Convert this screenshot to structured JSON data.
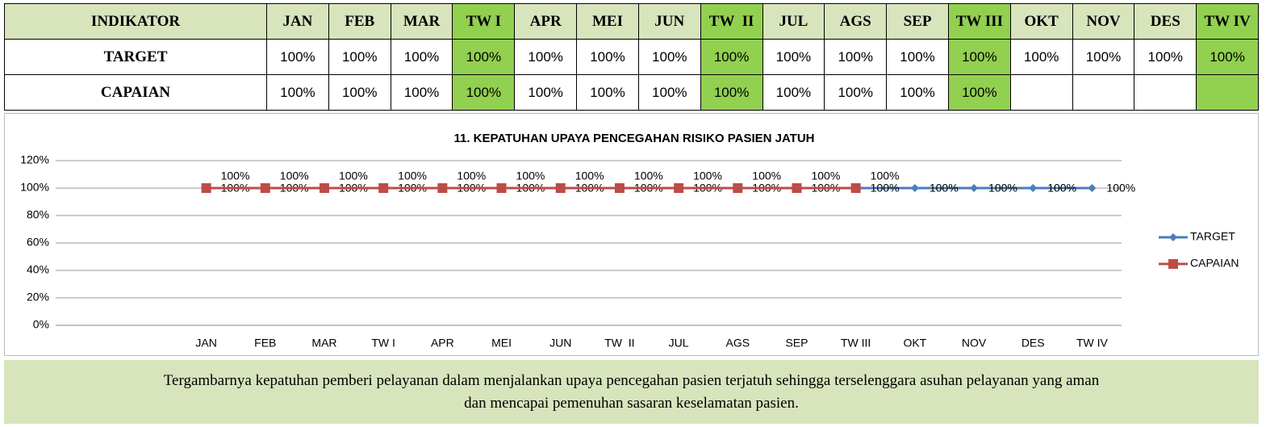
{
  "table": {
    "header": "INDIKATOR",
    "columns": [
      "JAN",
      "FEB",
      "MAR",
      "TW I",
      "APR",
      "MEI",
      "JUN",
      "TW  II",
      "JUL",
      "AGS",
      "SEP",
      "TW III",
      "OKT",
      "NOV",
      "DES",
      "TW IV"
    ],
    "highlight_color": "#92d050",
    "rows": [
      {
        "label": "TARGET",
        "cells": [
          "100%",
          "100%",
          "100%",
          "100%",
          "100%",
          "100%",
          "100%",
          "100%",
          "100%",
          "100%",
          "100%",
          "100%",
          "100%",
          "100%",
          "100%",
          "100%"
        ]
      },
      {
        "label": "CAPAIAN",
        "cells": [
          "100%",
          "100%",
          "100%",
          "100%",
          "100%",
          "100%",
          "100%",
          "100%",
          "100%",
          "100%",
          "100%",
          "100%",
          null,
          null,
          null,
          null
        ]
      }
    ]
  },
  "chart_data": {
    "type": "line",
    "title": "11. KEPATUHAN UPAYA PENCEGAHAN RISIKO PASIEN JATUH",
    "categories": [
      "JAN",
      "FEB",
      "MAR",
      "TW I",
      "APR",
      "MEI",
      "JUN",
      "TW  II",
      "JUL",
      "AGS",
      "SEP",
      "TW III",
      "OKT",
      "NOV",
      "DES",
      "TW IV"
    ],
    "series": [
      {
        "name": "TARGET",
        "color": "#4a7ebb",
        "values": [
          100,
          100,
          100,
          100,
          100,
          100,
          100,
          100,
          100,
          100,
          100,
          100,
          100,
          100,
          100,
          100
        ],
        "value_labels": [
          "100%",
          "100%",
          "100%",
          "100%",
          "100%",
          "100%",
          "100%",
          "100%",
          "100%",
          "100%",
          "100%",
          "100%",
          "100%",
          "100%",
          "100%",
          "100%"
        ]
      },
      {
        "name": "CAPAIAN",
        "color": "#be4b48",
        "values": [
          100,
          100,
          100,
          100,
          100,
          100,
          100,
          100,
          100,
          100,
          100,
          100,
          null,
          null,
          null,
          null
        ],
        "value_labels": [
          "100%",
          "100%",
          "100%",
          "100%",
          "100%",
          "100%",
          "100%",
          "100%",
          "100%",
          "100%",
          "100%",
          "100%",
          null,
          null,
          null,
          null
        ]
      }
    ],
    "ylim": [
      0,
      120
    ],
    "yticks": [
      {
        "value": 0,
        "label": "0%"
      },
      {
        "value": 20,
        "label": "20%"
      },
      {
        "value": 40,
        "label": "40%"
      },
      {
        "value": 60,
        "label": "60%"
      },
      {
        "value": 80,
        "label": "80%"
      },
      {
        "value": 100,
        "label": "100%"
      },
      {
        "value": 120,
        "label": "120%"
      }
    ],
    "grid": true,
    "legend": "right"
  },
  "footer": {
    "lines": [
      "Tergambarnya kepatuhan pemberi pelayanan dalam menjalankan upaya pencegahan pasien terjatuh sehingga terselenggara asuhan pelayanan yang aman",
      "dan mencapai pemenuhan sasaran keselamatan pasien."
    ]
  }
}
